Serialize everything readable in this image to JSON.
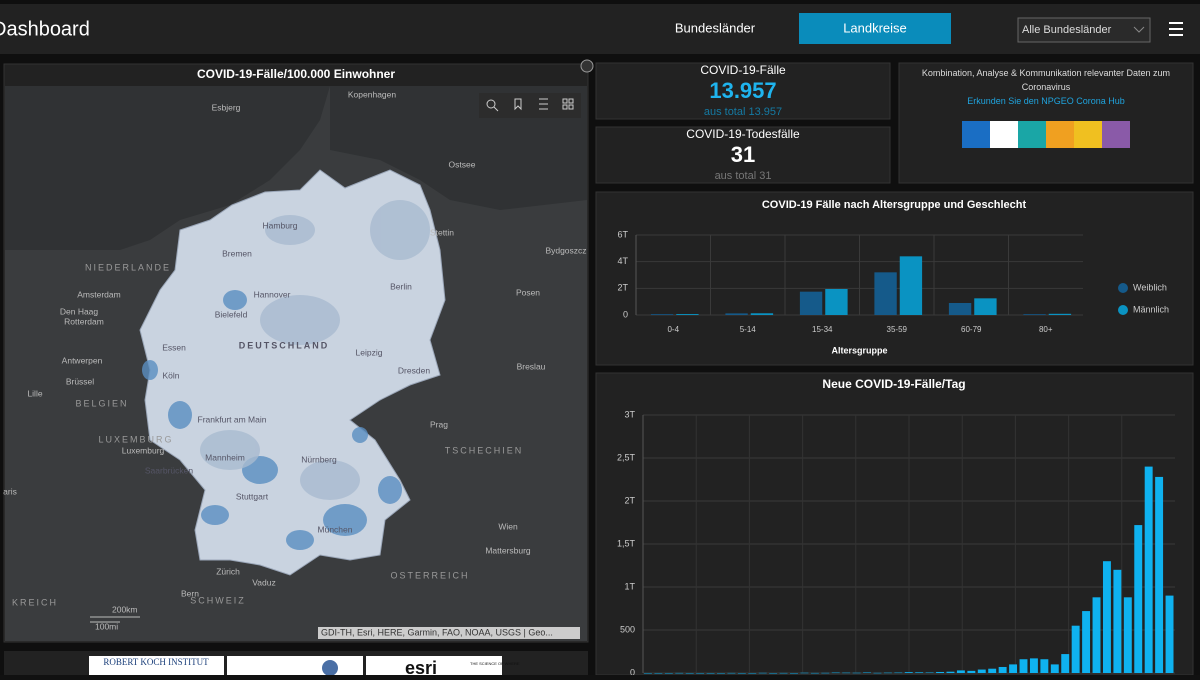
{
  "header": {
    "title": "Dashboard",
    "tabs": [
      "Bundesländer",
      "Landkreise"
    ],
    "dropdown": "Alle Bundesländer"
  },
  "map": {
    "title": "COVID-19-Fälle/100.000 Einwohner",
    "labels": [
      "Kopenhagen",
      "Esbjerg",
      "Ostsee",
      "Hamburg",
      "Stettin",
      "Bremen",
      "Bydgoszcz",
      "NIEDERLANDE",
      "Berlin",
      "Hannover",
      "Amsterdam",
      "Posen",
      "Den Haag",
      "Rotterdam",
      "Bielefeld",
      "DEUTSCHLAND",
      "Leipzig",
      "Antwerpen",
      "Essen",
      "Köln",
      "Dresden",
      "Breslau",
      "Brüssel",
      "Lille",
      "BELGIEN",
      "Frankfurt am Main",
      "Prag",
      "LUXEMBURG",
      "Luxemburg",
      "TSCHECHIEN",
      "Mannheim",
      "Nürnberg",
      "Saarbrücken",
      "Stuttgart",
      "Wien",
      "München",
      "Mattersburg",
      "Zürich",
      "Vaduz",
      "OSTERREICH",
      "Bern",
      "SCHWEIZ",
      "KREICH",
      "aris"
    ],
    "scale": [
      "200km",
      "100mi"
    ],
    "attribution": "GDI-TH, Esri, HERE, Garmin, FAO, NOAA, USGS | Geo..."
  },
  "cases": {
    "label": "COVID-19-Fälle",
    "value": "13.957",
    "sub": "aus total 13.957"
  },
  "deaths": {
    "label": "COVID-19-Todesfälle",
    "value": "31",
    "sub": "aus total 31"
  },
  "info": {
    "text": "Kombination, Analyse & Kommunikation relevanter Daten zum Coronavirus",
    "link": "Erkunden Sie den NPGEO Corona Hub"
  },
  "logos": [
    "ROBERT KOCH INSTITUT",
    "esri",
    "THE SCIENCE OF WHERE"
  ],
  "chart_data": [
    {
      "type": "bar",
      "title": "COVID-19 Fälle nach Altersgruppe und Geschlecht",
      "x_label": "Altersgruppe",
      "categories": [
        "0-4",
        "5-14",
        "15-34",
        "35-59",
        "60-79",
        "80+"
      ],
      "series": [
        {
          "name": "Weiblich",
          "color": "#155a8a",
          "values": [
            60,
            120,
            1750,
            3200,
            900,
            60
          ]
        },
        {
          "name": "Männlich",
          "color": "#0a93c2",
          "values": [
            70,
            130,
            1950,
            4400,
            1250,
            90
          ]
        }
      ],
      "ylim": [
        0,
        6000
      ],
      "yticks": [
        0,
        {
          "value": 2000,
          "label": "2T"
        },
        {
          "value": 4000,
          "label": "4T"
        },
        {
          "value": 6000,
          "label": "6T"
        }
      ],
      "grid": true
    },
    {
      "type": "bar",
      "title": "Neue COVID-19-Fälle/Tag",
      "color": "#0fb2f0",
      "values": [
        0,
        0,
        0,
        1,
        0,
        0,
        0,
        0,
        1,
        0,
        0,
        2,
        0,
        1,
        0,
        3,
        1,
        2,
        5,
        4,
        3,
        6,
        2,
        4,
        5,
        10,
        8,
        6,
        12,
        15,
        30,
        25,
        40,
        50,
        70,
        100,
        160,
        170,
        160,
        100,
        220,
        550,
        720,
        880,
        1300,
        1200,
        880,
        1720,
        2400,
        2280,
        900
      ],
      "ylim": [
        0,
        3000
      ],
      "yticks": [
        0,
        500,
        {
          "value": 1000,
          "label": "1T"
        },
        {
          "value": 1500,
          "label": "1,5T"
        },
        {
          "value": 2000,
          "label": "2T"
        },
        {
          "value": 2500,
          "label": "2,5T"
        },
        {
          "value": 3000,
          "label": "3T"
        }
      ],
      "grid": true
    }
  ]
}
